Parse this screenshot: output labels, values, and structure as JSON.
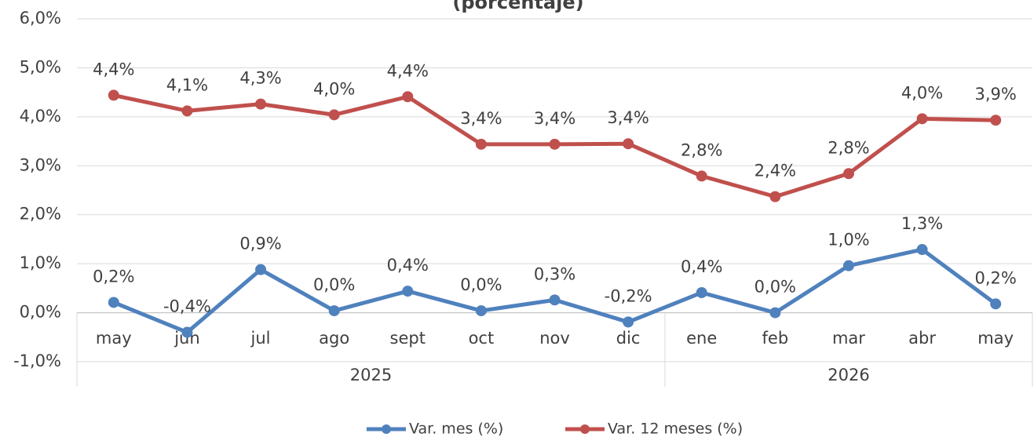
{
  "chart_data": {
    "type": "line",
    "title": "(porcentaje)",
    "categories": [
      "may",
      "jun",
      "jul",
      "ago",
      "sept",
      "oct",
      "nov",
      "dic",
      "ene",
      "feb",
      "mar",
      "abr",
      "may"
    ],
    "year_groups": [
      {
        "label": "2025",
        "count": 8
      },
      {
        "label": "2026",
        "count": 5
      }
    ],
    "series": [
      {
        "name": "Var. mes (%)",
        "color": "#4f81bd",
        "values": [
          0.21,
          -0.4,
          0.88,
          0.04,
          0.44,
          0.04,
          0.26,
          -0.19,
          0.41,
          0.0,
          0.96,
          1.29,
          0.18
        ],
        "value_labels": [
          "0,2%",
          "-0,4%",
          "0,9%",
          "0,0%",
          "0,4%",
          "0,0%",
          "0,3%",
          "-0,2%",
          "0,4%",
          "0,0%",
          "1,0%",
          "1,3%",
          "0,2%"
        ]
      },
      {
        "name": "Var. 12 meses (%)",
        "color": "#c0504d",
        "values": [
          4.44,
          4.12,
          4.26,
          4.04,
          4.41,
          3.44,
          3.44,
          3.45,
          2.79,
          2.37,
          2.84,
          3.96,
          3.93
        ],
        "value_labels": [
          "4,4%",
          "4,1%",
          "4,3%",
          "4,0%",
          "4,4%",
          "3,4%",
          "3,4%",
          "3,4%",
          "2,8%",
          "2,4%",
          "2,8%",
          "4,0%",
          "3,9%"
        ]
      }
    ],
    "ylim": [
      -1,
      6
    ],
    "yticks": [
      {
        "value": -1,
        "label": "-1,0%"
      },
      {
        "value": 0,
        "label": "0,0%"
      },
      {
        "value": 1,
        "label": "1,0%"
      },
      {
        "value": 2,
        "label": "2,0%"
      },
      {
        "value": 3,
        "label": "3,0%"
      },
      {
        "value": 4,
        "label": "4,0%"
      },
      {
        "value": 5,
        "label": "5,0%"
      },
      {
        "value": 6,
        "label": "6,0%"
      }
    ],
    "grid": true,
    "legend": "bottom"
  }
}
